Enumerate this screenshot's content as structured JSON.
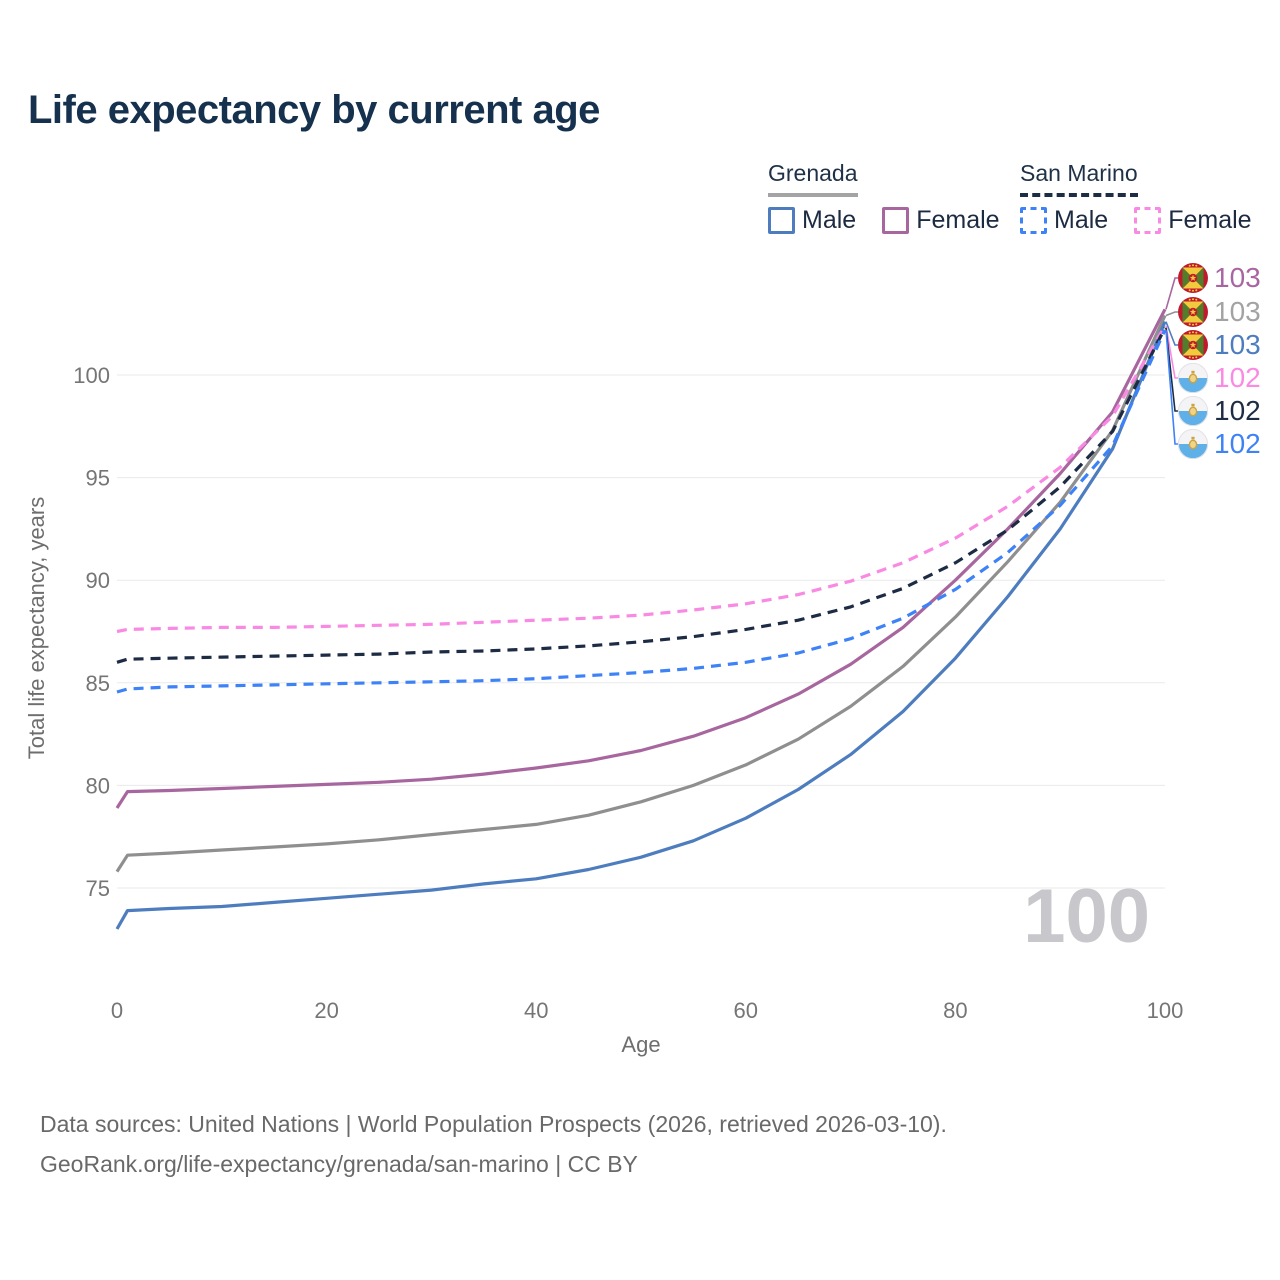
{
  "page": {
    "title": "Life expectancy by current age"
  },
  "legend": {
    "groups": [
      {
        "country": "Grenada",
        "line_color": "#a4a4a4",
        "line_style": "solid",
        "items": [
          {
            "label": "Male",
            "color": "#4d7dbf",
            "style": "solid"
          },
          {
            "label": "Female",
            "color": "#a8669f",
            "style": "solid"
          }
        ]
      },
      {
        "country": "San Marino",
        "line_color": "#1d2d44",
        "line_style": "dashed",
        "items": [
          {
            "label": "Male",
            "color": "#3e82f7",
            "style": "dashed"
          },
          {
            "label": "Female",
            "color": "#f98ae3",
            "style": "dashed"
          }
        ]
      }
    ]
  },
  "chart_data": {
    "type": "line",
    "title": "Life expectancy by current age",
    "xlabel": "Age",
    "ylabel": "Total life expectancy, years",
    "x_ticks": [
      0,
      20,
      40,
      60,
      80,
      100
    ],
    "y_ticks": [
      75,
      80,
      85,
      90,
      95,
      100
    ],
    "xlim": [
      0,
      100
    ],
    "ylim": [
      72.5,
      103.5
    ],
    "grid": "horizontal",
    "legend_position": "top-right",
    "watermark": "100",
    "ages": [
      0,
      1,
      5,
      10,
      15,
      20,
      25,
      30,
      35,
      40,
      45,
      50,
      55,
      60,
      65,
      70,
      75,
      80,
      85,
      90,
      95,
      100
    ],
    "series": [
      {
        "id": "grenada-female",
        "name": "Grenada Female",
        "country": "Grenada",
        "sex": "female",
        "flag": "grenada",
        "color": "#a8669f",
        "dashed": false,
        "end_label": "103",
        "end_label_color": "#a965a1",
        "values": [
          78.9,
          79.7,
          79.75,
          79.85,
          79.95,
          80.05,
          80.15,
          80.3,
          80.55,
          80.85,
          81.2,
          81.7,
          82.4,
          83.3,
          84.45,
          85.9,
          87.7,
          90.0,
          92.5,
          95.2,
          98.2,
          103.2
        ]
      },
      {
        "id": "grenada-total",
        "name": "Grenada",
        "country": "Grenada",
        "sex": "total",
        "flag": "grenada",
        "color": "#8f8f8f",
        "dashed": false,
        "end_label": "103",
        "end_label_color": "#a3a3a3",
        "values": [
          75.8,
          76.6,
          76.7,
          76.85,
          77.0,
          77.15,
          77.35,
          77.6,
          77.85,
          78.1,
          78.55,
          79.2,
          80.0,
          81.0,
          82.25,
          83.85,
          85.8,
          88.2,
          90.9,
          93.8,
          97.3,
          102.9
        ]
      },
      {
        "id": "grenada-male",
        "name": "Grenada Male",
        "country": "Grenada",
        "sex": "male",
        "flag": "grenada",
        "color": "#4d7dbf",
        "dashed": false,
        "end_label": "103",
        "end_label_color": "#4d7dbf",
        "values": [
          73.0,
          73.9,
          74.0,
          74.1,
          74.3,
          74.5,
          74.7,
          74.9,
          75.2,
          75.45,
          75.9,
          76.5,
          77.3,
          78.4,
          79.8,
          81.5,
          83.6,
          86.2,
          89.2,
          92.5,
          96.4,
          102.6
        ]
      },
      {
        "id": "san-marino-female",
        "name": "San Marino Female",
        "country": "San Marino",
        "sex": "female",
        "flag": "san-marino",
        "color": "#f98ae3",
        "dashed": true,
        "end_label": "102",
        "end_label_color": "#fb8ae3",
        "values": [
          87.5,
          87.6,
          87.65,
          87.7,
          87.7,
          87.75,
          87.8,
          87.85,
          87.95,
          88.05,
          88.15,
          88.3,
          88.55,
          88.85,
          89.3,
          89.95,
          90.85,
          92.05,
          93.6,
          95.5,
          98.0,
          102.4
        ]
      },
      {
        "id": "san-marino-total",
        "name": "San Marino",
        "country": "San Marino",
        "sex": "total",
        "flag": "san-marino",
        "color": "#1d2c44",
        "dashed": true,
        "end_label": "102",
        "end_label_color": "#1d2d44",
        "values": [
          86.0,
          86.15,
          86.2,
          86.25,
          86.3,
          86.35,
          86.4,
          86.5,
          86.55,
          86.65,
          86.8,
          87.0,
          87.25,
          87.6,
          88.05,
          88.7,
          89.6,
          90.85,
          92.45,
          94.55,
          97.25,
          102.3
        ]
      },
      {
        "id": "san-marino-male",
        "name": "San Marino Male",
        "country": "San Marino",
        "sex": "male",
        "flag": "san-marino",
        "color": "#3e82f7",
        "dashed": true,
        "end_label": "102",
        "end_label_color": "#3e82f7",
        "values": [
          84.55,
          84.7,
          84.8,
          84.85,
          84.9,
          84.95,
          85.0,
          85.05,
          85.1,
          85.2,
          85.35,
          85.5,
          85.7,
          86.0,
          86.45,
          87.15,
          88.15,
          89.55,
          91.35,
          93.65,
          96.55,
          102.2
        ]
      }
    ]
  },
  "footer": {
    "line1": "Data sources: United Nations | World Population Prospects (2026, retrieved 2026-03-10).",
    "line2": "GeoRank.org/life-expectancy/grenada/san-marino | CC BY"
  }
}
